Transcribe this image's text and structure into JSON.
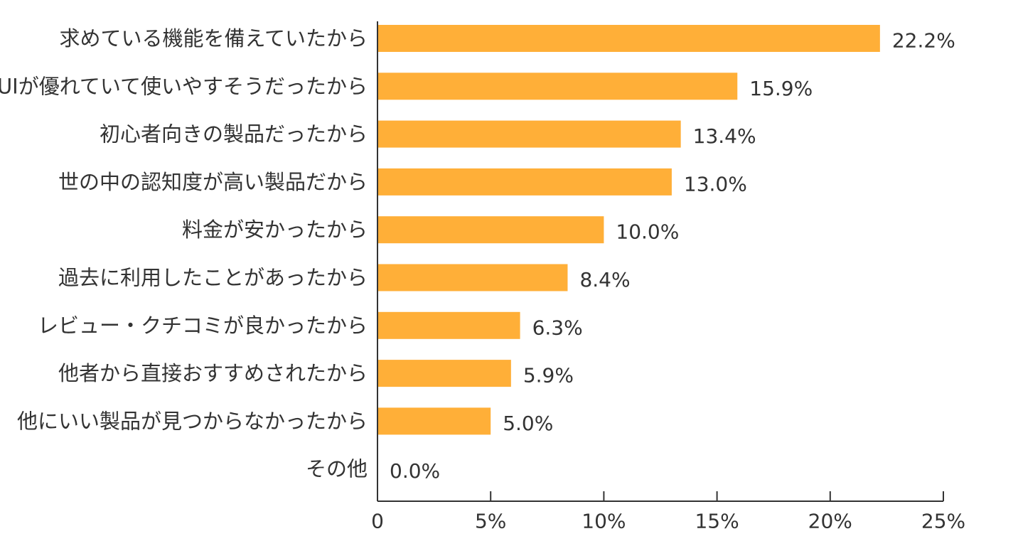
{
  "chart_data": {
    "type": "bar",
    "orientation": "horizontal",
    "categories": [
      "求めている機能を備えていたから",
      "UIが優れていて使いやすそうだったから",
      "初心者向きの製品だったから",
      "世の中の認知度が高い製品だから",
      "料金が安かったから",
      "過去に利用したことがあったから",
      "レビュー・クチコミが良かったから",
      "他者から直接おすすめされたから",
      "他にいい製品が見つからなかったから",
      "その他"
    ],
    "values": [
      22.2,
      15.9,
      13.4,
      13.0,
      10.0,
      8.4,
      6.3,
      5.9,
      5.0,
      0.0
    ],
    "value_labels": [
      "22.2%",
      "15.9%",
      "13.4%",
      "13.0%",
      "10.0%",
      "8.4%",
      "6.3%",
      "5.9%",
      "5.0%",
      "0.0%"
    ],
    "xlim": [
      0,
      25
    ],
    "xticks": [
      0,
      5,
      10,
      15,
      20,
      25
    ],
    "xtick_labels": [
      "0",
      "5%",
      "10%",
      "15%",
      "20%",
      "25%"
    ],
    "bar_color": "#FFAF38",
    "title": "",
    "xlabel": "",
    "ylabel": "",
    "grid": false
  }
}
